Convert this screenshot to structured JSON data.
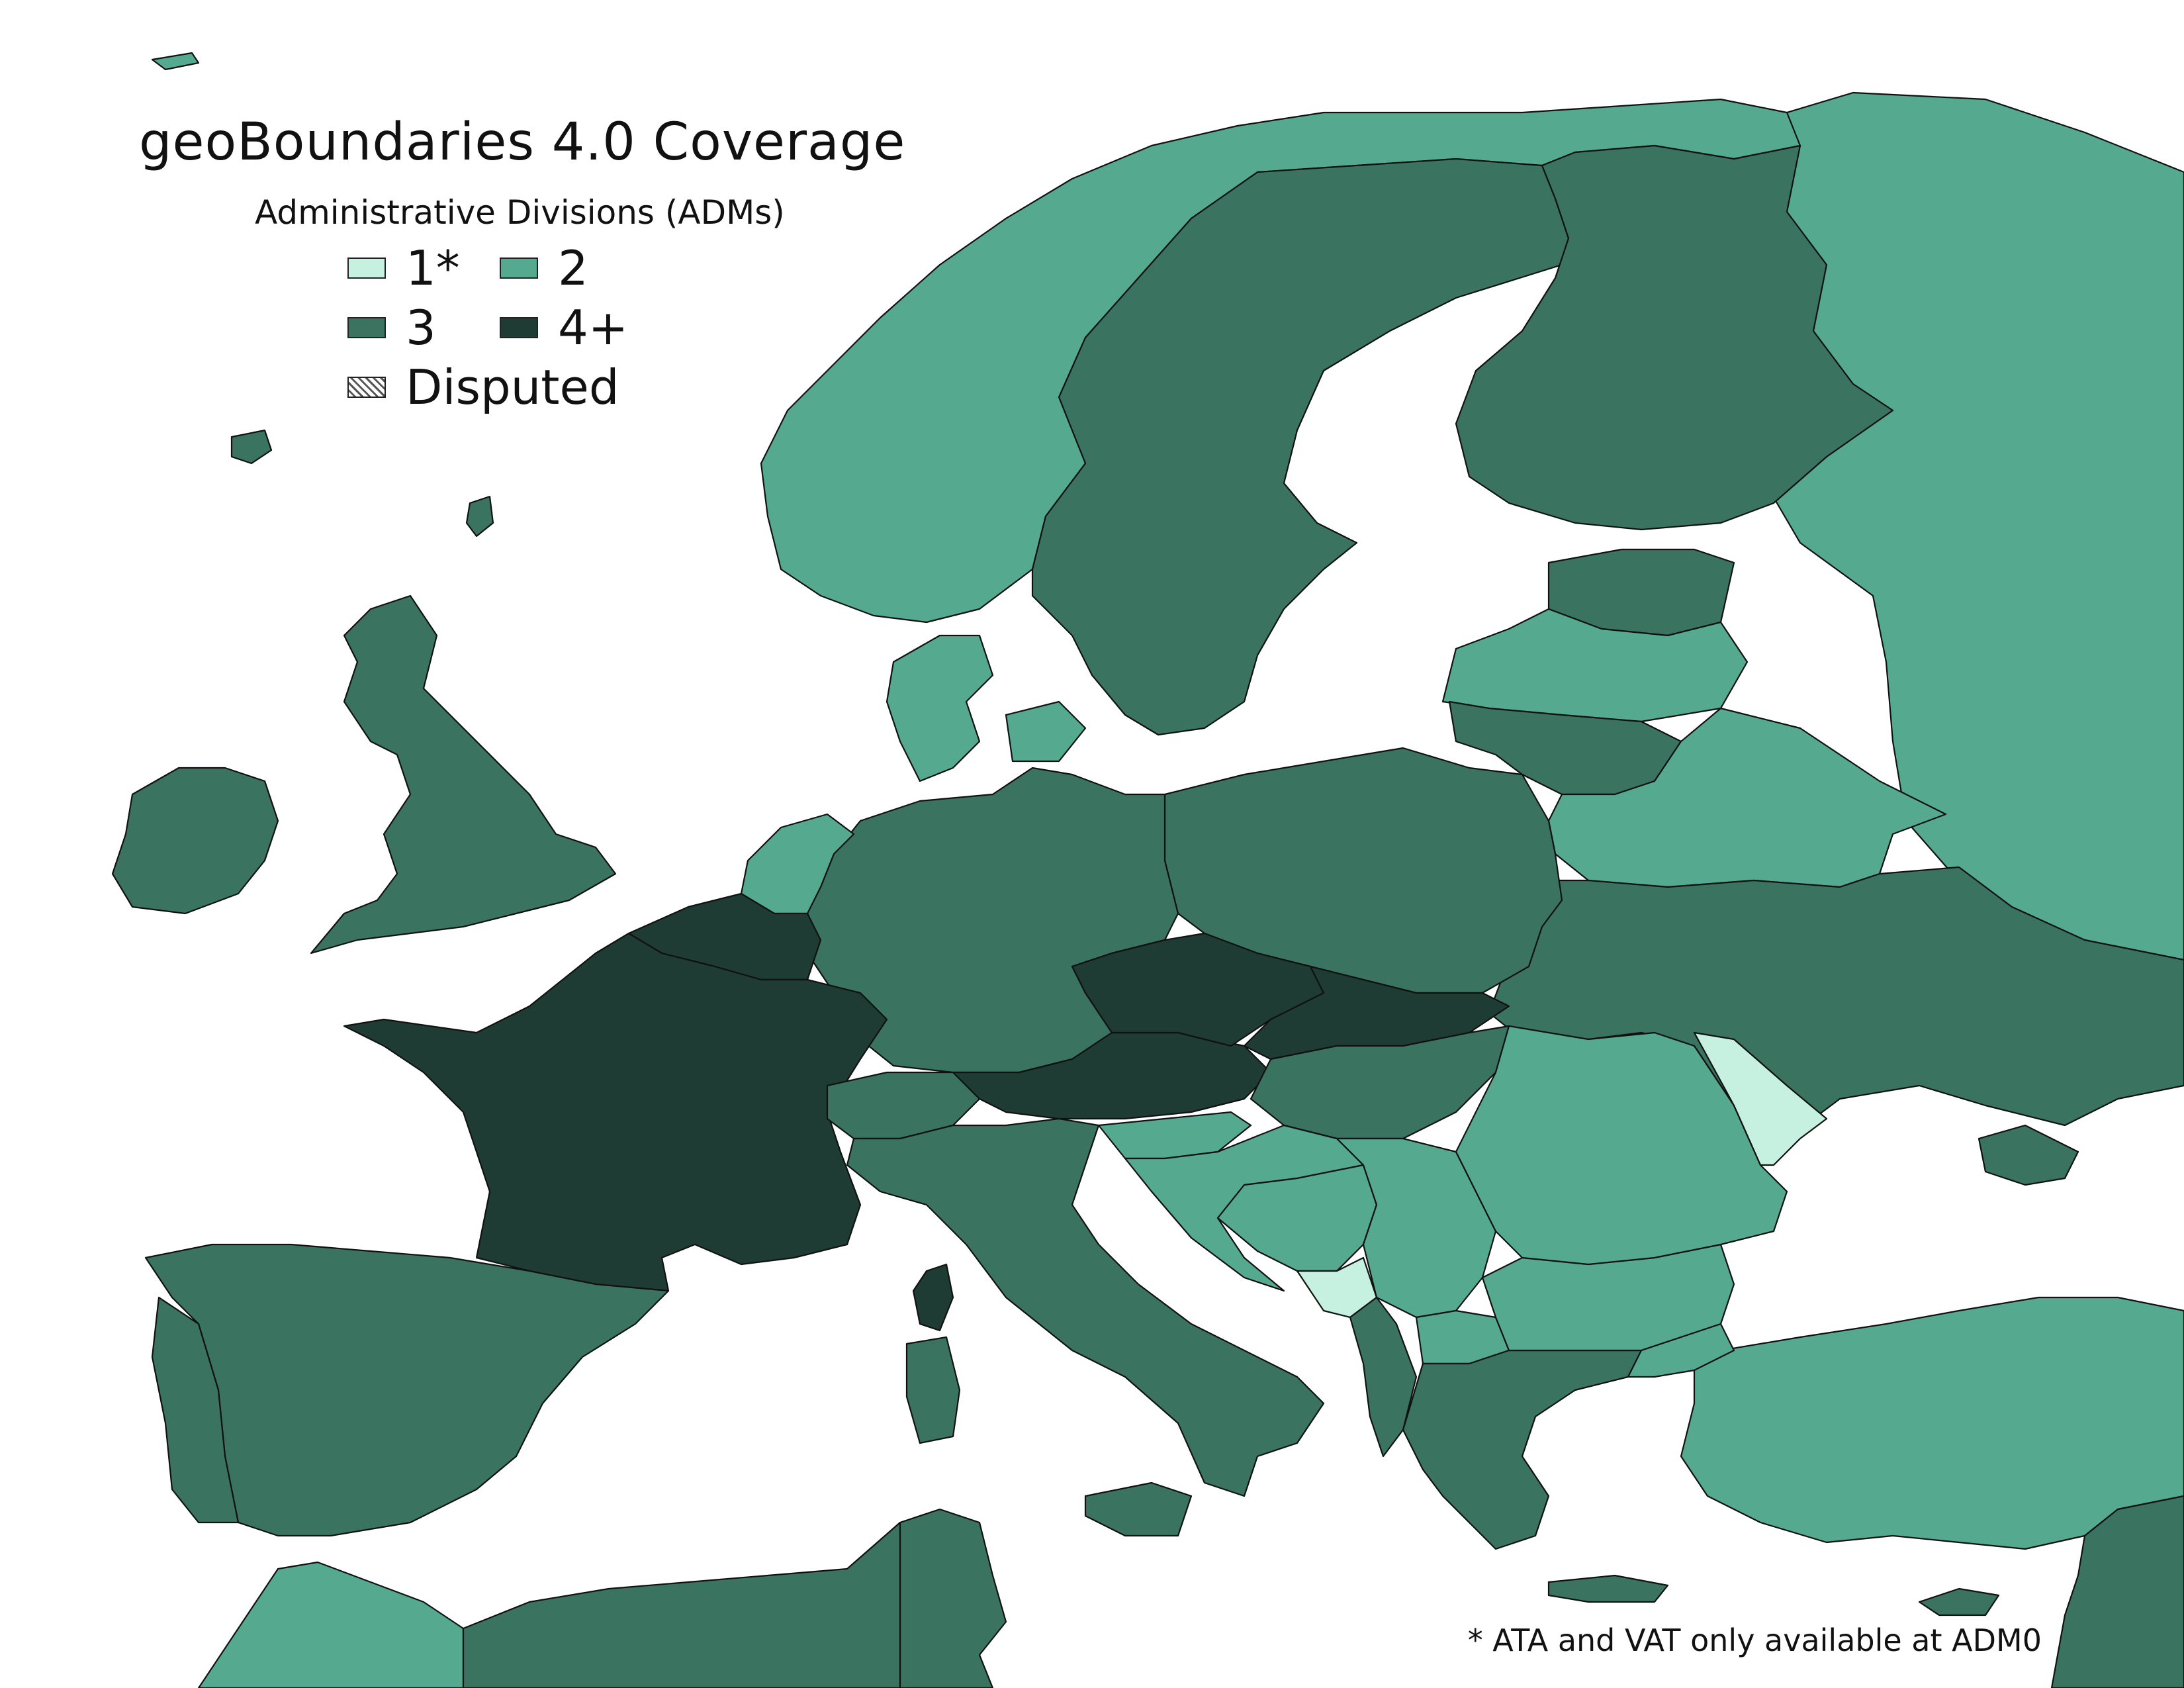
{
  "title": "geoBoundaries 4.0 Coverage",
  "legend": {
    "heading": "Administrative Divisions (ADMs)",
    "items": [
      {
        "label": "1*",
        "color": "#c6f0df"
      },
      {
        "label": "2",
        "color": "#55a98f"
      },
      {
        "label": "3",
        "color": "#3a7360"
      },
      {
        "label": "4+",
        "color": "#1e3c33"
      }
    ],
    "disputed_label": "Disputed"
  },
  "footnote": "* ATA and VAT only available at ADM0",
  "colors": {
    "adm1": "#c6f0df",
    "adm2": "#55a98f",
    "adm3": "#3a7360",
    "adm4": "#1e3c33",
    "background": "#ffffff",
    "border": "#111111"
  },
  "regions": [
    {
      "name": "Norway",
      "level": "adm2"
    },
    {
      "name": "Sweden",
      "level": "adm3"
    },
    {
      "name": "Finland",
      "level": "adm3"
    },
    {
      "name": "Russia",
      "level": "adm2"
    },
    {
      "name": "Estonia",
      "level": "adm3"
    },
    {
      "name": "Latvia",
      "level": "adm2"
    },
    {
      "name": "Lithuania",
      "level": "adm3"
    },
    {
      "name": "Belarus",
      "level": "adm2"
    },
    {
      "name": "Ukraine",
      "level": "adm3"
    },
    {
      "name": "Poland",
      "level": "adm3"
    },
    {
      "name": "Germany",
      "level": "adm3"
    },
    {
      "name": "Denmark",
      "level": "adm2"
    },
    {
      "name": "Netherlands",
      "level": "adm2"
    },
    {
      "name": "Belgium",
      "level": "adm4"
    },
    {
      "name": "France",
      "level": "adm4"
    },
    {
      "name": "Corsica",
      "level": "adm4"
    },
    {
      "name": "United Kingdom",
      "level": "adm3"
    },
    {
      "name": "Ireland",
      "level": "adm3"
    },
    {
      "name": "Iceland",
      "level": "adm3"
    },
    {
      "name": "Spain",
      "level": "adm3"
    },
    {
      "name": "Portugal",
      "level": "adm3"
    },
    {
      "name": "Switzerland",
      "level": "adm3"
    },
    {
      "name": "Italy",
      "level": "adm3"
    },
    {
      "name": "Sardinia",
      "level": "adm3"
    },
    {
      "name": "Sicily",
      "level": "adm3"
    },
    {
      "name": "Czechia",
      "level": "adm4"
    },
    {
      "name": "Slovakia",
      "level": "adm4"
    },
    {
      "name": "Austria",
      "level": "adm4"
    },
    {
      "name": "Hungary",
      "level": "adm3"
    },
    {
      "name": "Slovenia",
      "level": "adm2"
    },
    {
      "name": "Croatia",
      "level": "adm2"
    },
    {
      "name": "Bosnia and Herzegovina",
      "level": "adm2"
    },
    {
      "name": "Serbia",
      "level": "adm2"
    },
    {
      "name": "Montenegro",
      "level": "adm1"
    },
    {
      "name": "Albania",
      "level": "adm3"
    },
    {
      "name": "North Macedonia",
      "level": "adm2"
    },
    {
      "name": "Greece",
      "level": "adm3"
    },
    {
      "name": "Crete",
      "level": "adm3"
    },
    {
      "name": "Bulgaria",
      "level": "adm2"
    },
    {
      "name": "Romania",
      "level": "adm2"
    },
    {
      "name": "Moldova",
      "level": "adm1"
    },
    {
      "name": "Crimea",
      "level": "adm3"
    },
    {
      "name": "Turkey",
      "level": "adm2"
    },
    {
      "name": "Cyprus",
      "level": "adm3"
    },
    {
      "name": "Morocco",
      "level": "adm2"
    },
    {
      "name": "Algeria",
      "level": "adm3"
    },
    {
      "name": "Tunisia",
      "level": "adm3"
    },
    {
      "name": "Syria",
      "level": "adm3"
    }
  ]
}
